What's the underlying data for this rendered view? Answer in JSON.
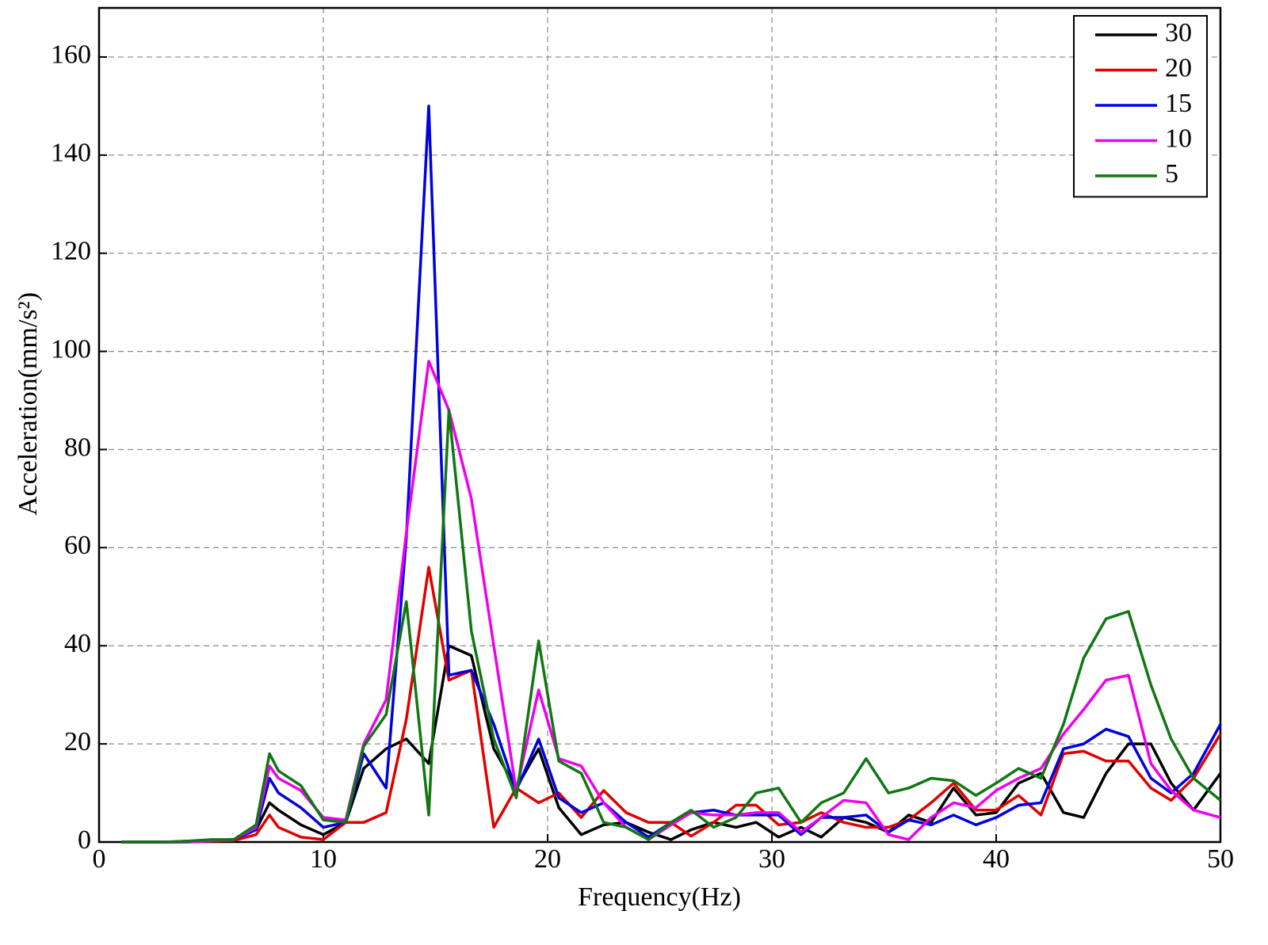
{
  "chart_data": {
    "type": "line",
    "xlabel": "Frequency(Hz)",
    "ylabel": "Acceleration(mm/s²)",
    "x": [
      1,
      2,
      3,
      4,
      5,
      6,
      7,
      7.6,
      8,
      9,
      10,
      11,
      11.8,
      12.8,
      13.7,
      14.7,
      15.6,
      16.6,
      17.6,
      18.6,
      19.6,
      20.5,
      21.5,
      22.5,
      23.5,
      24.5,
      25.5,
      26.4,
      27.4,
      28.4,
      29.3,
      30.3,
      31.3,
      32.2,
      33.2,
      34.2,
      35.2,
      36.1,
      37.1,
      38.1,
      39.1,
      40,
      41,
      42,
      43,
      43.9,
      44.9,
      45.9,
      46.9,
      47.8,
      48.8,
      50
    ],
    "series": [
      {
        "name": "30",
        "color": "#000000",
        "values": [
          0,
          0,
          0,
          0.2,
          0.3,
          0.5,
          2.5,
          8,
          6.5,
          3.5,
          1.5,
          4,
          15,
          19,
          21,
          16,
          40,
          38,
          19,
          11,
          19,
          7,
          1.5,
          3.5,
          4,
          2,
          0.5,
          2.5,
          4,
          3,
          4,
          1,
          3,
          1,
          5,
          4,
          2,
          5.5,
          4,
          11,
          5.5,
          6,
          12,
          14,
          6,
          5,
          14,
          20,
          20,
          12,
          6.5,
          14
        ]
      },
      {
        "name": "20",
        "color": "#e00000",
        "values": [
          0,
          0,
          0,
          0,
          0.2,
          0.3,
          1.5,
          5.5,
          3,
          1,
          0.5,
          4,
          4,
          6,
          25,
          56,
          33,
          35,
          3,
          11,
          8,
          10,
          5,
          10.5,
          6,
          4,
          4,
          1.2,
          4,
          7.5,
          7.5,
          3.5,
          4,
          6,
          4,
          3,
          3,
          4.5,
          8,
          12,
          6.5,
          6.5,
          9.5,
          5.5,
          18,
          18.5,
          16.5,
          16.5,
          11,
          8.5,
          13,
          22
        ]
      },
      {
        "name": "15",
        "color": "#0000e0",
        "values": [
          0,
          0,
          0,
          0,
          0.3,
          0.5,
          2.5,
          13,
          10,
          7,
          3,
          4,
          18,
          11,
          62,
          150,
          34,
          35,
          24,
          10.5,
          21,
          9,
          6,
          8,
          4,
          1,
          4,
          6,
          6.5,
          5.5,
          5.5,
          5.5,
          1.5,
          5,
          5,
          5.5,
          2,
          4.5,
          3.5,
          5.5,
          3.5,
          5,
          7.5,
          8,
          19,
          20,
          23,
          21.5,
          13,
          10,
          14,
          24
        ]
      },
      {
        "name": "10",
        "color": "#ee00ee",
        "values": [
          0,
          0,
          0,
          0,
          0.3,
          0.5,
          3,
          15.5,
          13,
          10.5,
          5,
          4.5,
          20,
          29,
          63,
          98,
          88,
          70,
          40,
          10.5,
          31,
          17,
          15.5,
          8,
          3,
          0.5,
          3.5,
          6,
          5.5,
          5.5,
          6,
          6,
          2,
          5,
          8.5,
          8,
          1.5,
          0.5,
          5,
          8,
          7,
          10.5,
          13,
          15,
          22,
          27,
          33,
          34,
          16,
          10.5,
          6.5,
          5
        ]
      },
      {
        "name": "5",
        "color": "#117711",
        "values": [
          0,
          0,
          0,
          0.2,
          0.5,
          0.5,
          3.5,
          18,
          14.5,
          11.5,
          4.5,
          4,
          19.5,
          26,
          49,
          5.5,
          88,
          43,
          21,
          9,
          41,
          16.5,
          14,
          4,
          3,
          0.5,
          4,
          6.5,
          3,
          5,
          10,
          11,
          4,
          8,
          10,
          17,
          10,
          11,
          13,
          12.5,
          9.5,
          12,
          15,
          13,
          24,
          37.5,
          45.5,
          47,
          32,
          21,
          13,
          8.5
        ]
      }
    ],
    "xlim": [
      0,
      50
    ],
    "xticks": [
      0,
      10,
      20,
      30,
      40,
      50
    ],
    "ylim": [
      0,
      170
    ],
    "yticks": [
      0,
      20,
      40,
      60,
      80,
      100,
      120,
      140,
      160
    ],
    "grid": true,
    "legend": "upper right"
  }
}
